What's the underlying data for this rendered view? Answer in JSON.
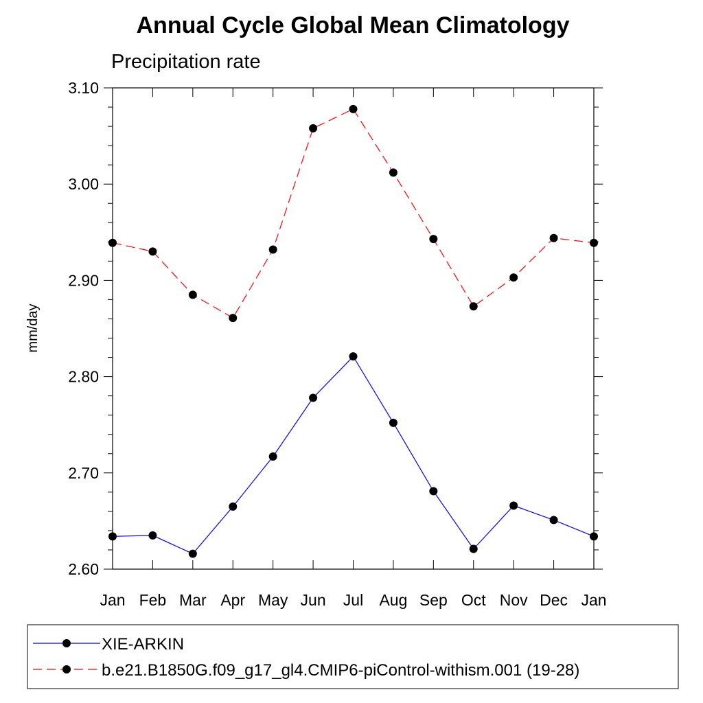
{
  "chart_data": {
    "type": "line",
    "title": "Annual Cycle Global Mean Climatology",
    "subtitle": "Precipitation rate",
    "ylabel": "mm/day",
    "xlabel": "",
    "categories": [
      "Jan",
      "Feb",
      "Mar",
      "Apr",
      "May",
      "Jun",
      "Jul",
      "Aug",
      "Sep",
      "Oct",
      "Nov",
      "Dec",
      "Jan"
    ],
    "ylim": [
      2.6,
      3.1
    ],
    "yticks": [
      "2.60",
      "2.70",
      "2.80",
      "2.90",
      "3.00",
      "3.10"
    ],
    "series": [
      {
        "name": "XIE-ARKIN",
        "color": "#0000ff",
        "style": "solid",
        "values": [
          2.634,
          2.635,
          2.616,
          2.665,
          2.717,
          2.778,
          2.821,
          2.752,
          2.681,
          2.621,
          2.666,
          2.651,
          2.634
        ]
      },
      {
        "name": "b.e21.B1850G.f09_g17_gl4.CMIP6-piControl-withism.001 (19-28)",
        "color": "#ff0000",
        "style": "dashed",
        "values": [
          2.939,
          2.93,
          2.885,
          2.861,
          2.932,
          3.058,
          3.078,
          3.012,
          2.943,
          2.873,
          2.903,
          2.944,
          2.939
        ]
      }
    ],
    "legend_position": "bottom"
  }
}
